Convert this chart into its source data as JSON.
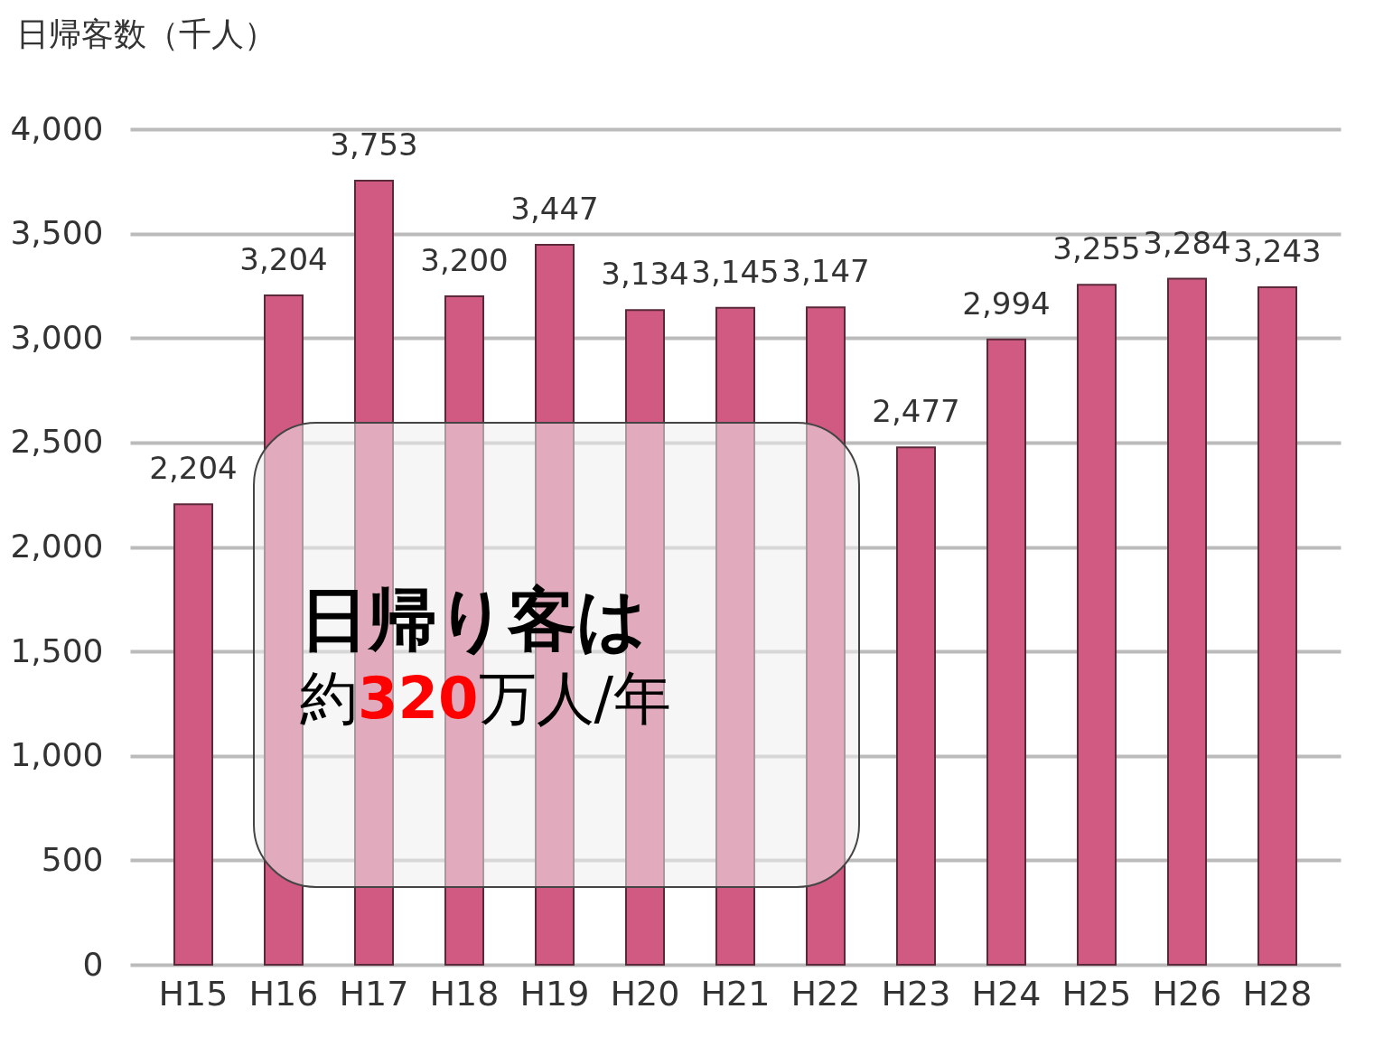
{
  "chart_data": {
    "type": "bar",
    "ylabel": "日帰客数（千人）",
    "categories": [
      "H15",
      "H16",
      "H17",
      "H18",
      "H19",
      "H20",
      "H21",
      "H22",
      "H23",
      "H24",
      "H25",
      "H26",
      "H28"
    ],
    "values": [
      2204,
      3204,
      3753,
      3200,
      3447,
      3134,
      3145,
      3147,
      2477,
      2994,
      3255,
      3284,
      3243
    ],
    "value_labels": [
      "2,204",
      "3,204",
      "3,753",
      "3,200",
      "3,447",
      "3,134",
      "3,145",
      "3,147",
      "2,477",
      "2,994",
      "3,255",
      "3,284",
      "3,243"
    ],
    "color": "#d05a82",
    "ylim": [
      0,
      4000
    ],
    "yticks": [
      0,
      {
        "value": 500,
        "label": "500"
      },
      {
        "value": 1000,
        "label": "1,000"
      },
      {
        "value": 1500,
        "label": "1,500"
      },
      {
        "value": 2000,
        "label": "2,000"
      },
      {
        "value": 2500,
        "label": "2,500"
      },
      {
        "value": 3000,
        "label": "3,000"
      },
      {
        "value": 3500,
        "label": "3,500"
      },
      {
        "value": 4000,
        "label": "4,000"
      }
    ],
    "grid": "y",
    "annotations": [
      "日帰り客は",
      "約320万人/年"
    ]
  }
}
